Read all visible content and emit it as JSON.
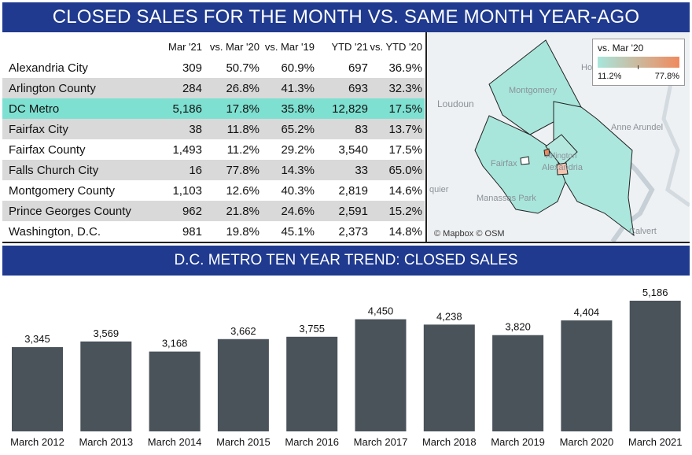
{
  "top_title": "CLOSED SALES FOR THE MONTH VS. SAME MONTH YEAR-AGO",
  "bottom_title": "D.C. METRO TEN YEAR TREND: CLOSED SALES",
  "table": {
    "headers": [
      "Mar '21",
      "vs. Mar '20",
      "vs. Mar '19",
      "YTD '21",
      "vs. YTD '20"
    ],
    "rows": [
      {
        "name": "Alexandria City",
        "values": [
          "309",
          "50.7%",
          "60.9%",
          "697",
          "36.9%"
        ]
      },
      {
        "name": "Arlington County",
        "values": [
          "284",
          "26.8%",
          "41.3%",
          "693",
          "32.3%"
        ]
      },
      {
        "name": "DC Metro",
        "values": [
          "5,186",
          "17.8%",
          "35.8%",
          "12,829",
          "17.5%"
        ]
      },
      {
        "name": "Fairfax City",
        "values": [
          "38",
          "11.8%",
          "65.2%",
          "83",
          "13.7%"
        ]
      },
      {
        "name": "Fairfax County",
        "values": [
          "1,493",
          "11.2%",
          "29.2%",
          "3,540",
          "17.5%"
        ]
      },
      {
        "name": "Falls Church City",
        "values": [
          "16",
          "77.8%",
          "14.3%",
          "33",
          "65.0%"
        ]
      },
      {
        "name": "Montgomery County",
        "values": [
          "1,103",
          "12.6%",
          "40.3%",
          "2,819",
          "14.6%"
        ]
      },
      {
        "name": "Prince Georges County",
        "values": [
          "962",
          "21.8%",
          "24.6%",
          "2,591",
          "15.2%"
        ]
      },
      {
        "name": "Washington, D.C.",
        "values": [
          "981",
          "19.8%",
          "45.1%",
          "2,373",
          "14.8%"
        ]
      }
    ],
    "highlight_color": "#7ee0d1",
    "shade_color": "#d9d9d9"
  },
  "map": {
    "legend_title": "vs. Mar '20",
    "legend_min": "11.2%",
    "legend_max": "77.8%",
    "gradient_low": "#a8e6dc",
    "gradient_high": "#f08a5d",
    "labels": [
      "Loudoun",
      "Montgomery",
      "Anne Arundel",
      "Fairfax",
      "Alexandria",
      "Arlington",
      "Manassas Park",
      "Calvert",
      "quier",
      "Ho"
    ],
    "attribution": "© Mapbox © OSM"
  },
  "chart_data": {
    "type": "bar",
    "title": "D.C. METRO TEN YEAR TREND: CLOSED SALES",
    "categories": [
      "March 2012",
      "March 2013",
      "March 2014",
      "March 2015",
      "March 2016",
      "March 2017",
      "March 2018",
      "March 2019",
      "March 2020",
      "March 2021"
    ],
    "values": [
      3345,
      3569,
      3168,
      3662,
      3755,
      4450,
      4238,
      3820,
      4404,
      5186
    ],
    "labels": [
      "3,345",
      "3,569",
      "3,168",
      "3,662",
      "3,755",
      "4,450",
      "4,238",
      "3,820",
      "4,404",
      "5,186"
    ],
    "ylim": [
      0,
      5186
    ],
    "grid": false,
    "bar_color": "#4a525a"
  }
}
